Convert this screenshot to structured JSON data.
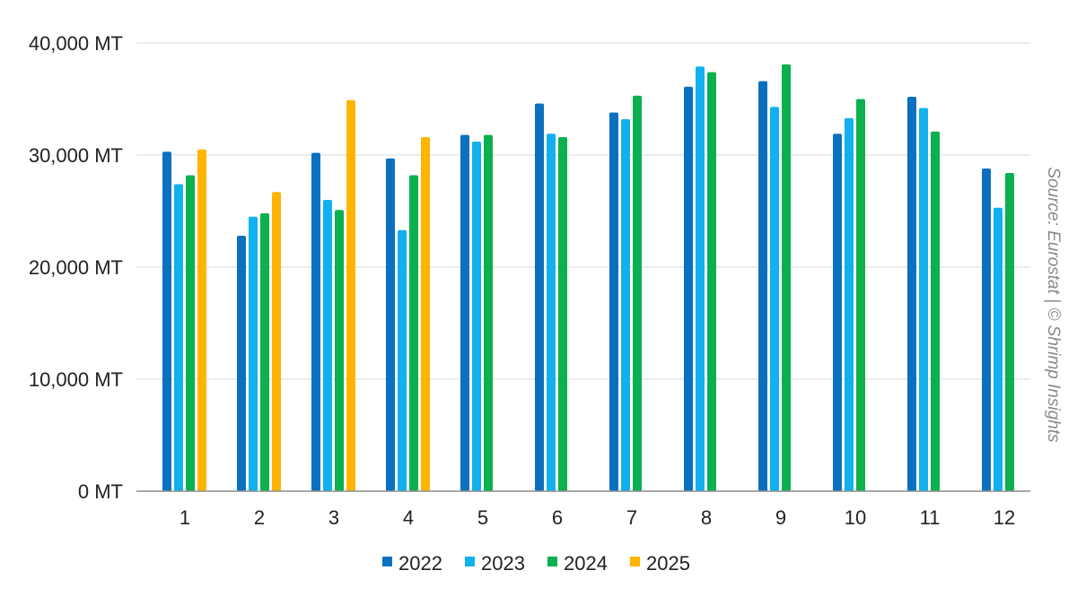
{
  "chart_data": {
    "type": "bar",
    "categories": [
      "1",
      "2",
      "3",
      "4",
      "5",
      "6",
      "7",
      "8",
      "9",
      "10",
      "11",
      "12"
    ],
    "series": [
      {
        "name": "2022",
        "color": "#0b70c0",
        "values": [
          30300,
          22800,
          30200,
          29700,
          31800,
          34600,
          33800,
          36100,
          36600,
          31900,
          35200,
          28800
        ]
      },
      {
        "name": "2023",
        "color": "#11b0ee",
        "values": [
          27400,
          24500,
          26000,
          23300,
          31200,
          31900,
          33200,
          37900,
          34300,
          33300,
          34200,
          25300
        ]
      },
      {
        "name": "2024",
        "color": "#0cb04e",
        "values": [
          28200,
          24800,
          25100,
          28200,
          31800,
          31600,
          35300,
          37400,
          38100,
          35000,
          32100,
          28400
        ]
      },
      {
        "name": "2025",
        "color": "#ffb400",
        "values": [
          30500,
          26700,
          34900,
          31600,
          null,
          null,
          null,
          null,
          null,
          null,
          null,
          null
        ]
      }
    ],
    "ylim": [
      0,
      40000
    ],
    "yticks": [
      0,
      10000,
      20000,
      30000,
      40000
    ],
    "ytick_labels": [
      "0 MT",
      "10,000 MT",
      "20,000 MT",
      "30,000 MT",
      "40,000 MT"
    ],
    "grid": true,
    "legend": "bottom",
    "title": "",
    "xlabel": "",
    "ylabel": ""
  },
  "source_note": "Source: Eurostat | © Shrimp Insights"
}
